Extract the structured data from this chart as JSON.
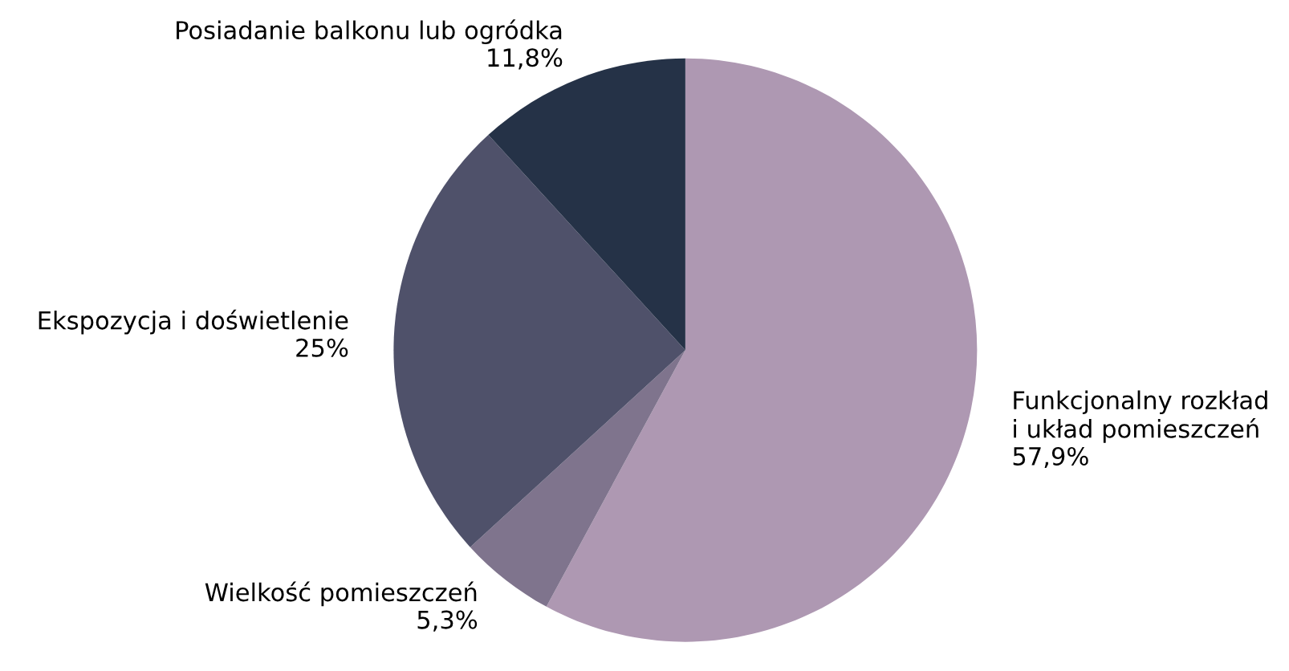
{
  "chart_data": {
    "type": "pie",
    "categories": [
      "Funkcjonalny rozkład\ni układ pomieszczeń",
      "Wielkość pomieszczeń",
      "Ekspozycja i doświetlenie",
      "Posiadanie balkonu lub ogródka"
    ],
    "values": [
      57.9,
      5.3,
      25,
      11.8
    ],
    "value_labels": [
      "57,9%",
      "5,3%",
      "25%",
      "11,8%"
    ],
    "colors": [
      "#ae98b2",
      "#7f748d",
      "#4f516a",
      "#253247"
    ],
    "legend": false
  }
}
